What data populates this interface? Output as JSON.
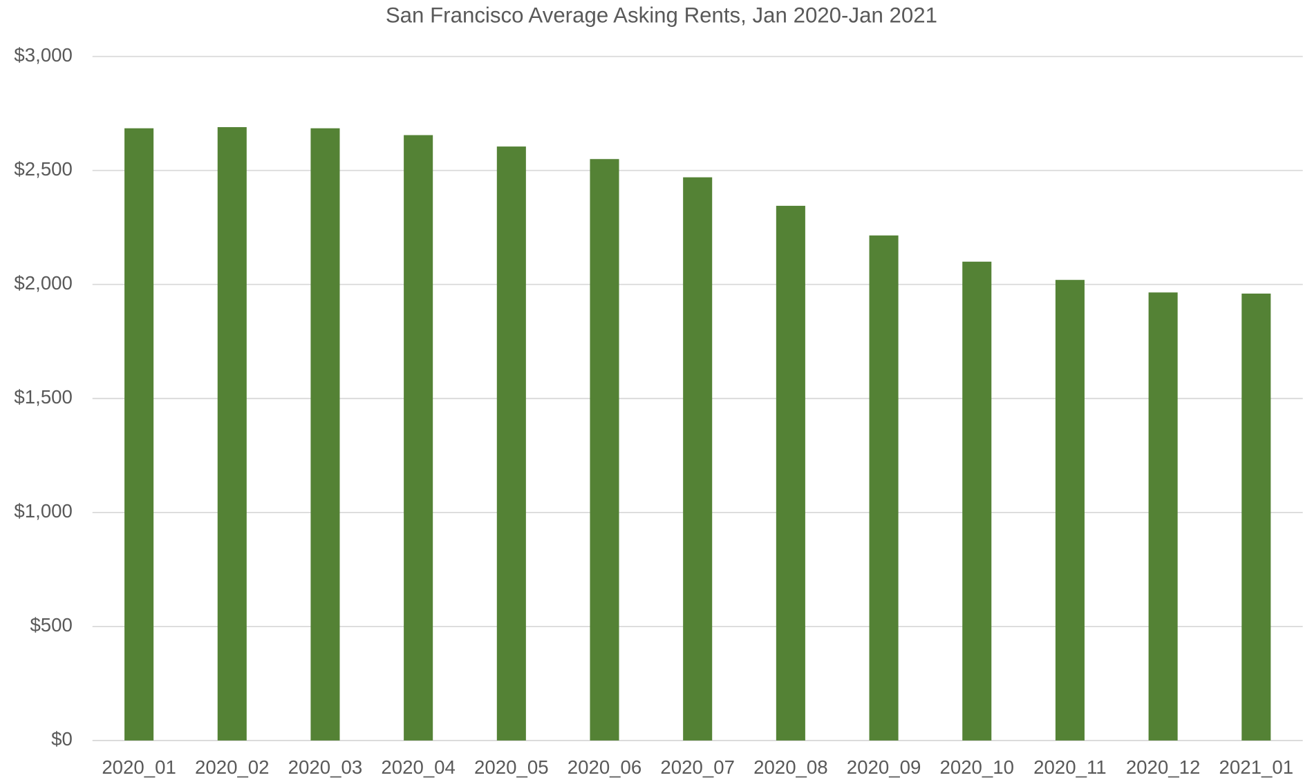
{
  "chart_data": {
    "type": "bar",
    "title": "San Francisco Average Asking Rents, Jan 2020-Jan 2021",
    "categories": [
      "2020_01",
      "2020_02",
      "2020_03",
      "2020_04",
      "2020_05",
      "2020_06",
      "2020_07",
      "2020_08",
      "2020_09",
      "2020_10",
      "2020_11",
      "2020_12",
      "2021_01"
    ],
    "values": [
      2685,
      2690,
      2685,
      2655,
      2605,
      2550,
      2470,
      2345,
      2215,
      2100,
      2020,
      1965,
      1960
    ],
    "color": "#548235",
    "ylim": [
      0,
      3000
    ],
    "yticks": [
      {
        "value": 0,
        "label": "$0"
      },
      {
        "value": 500,
        "label": "$500"
      },
      {
        "value": 1000,
        "label": "$1,000"
      },
      {
        "value": 1500,
        "label": "$1,500"
      },
      {
        "value": 2000,
        "label": "$2,000"
      },
      {
        "value": 2500,
        "label": "$2,500"
      },
      {
        "value": 3000,
        "label": "$3,000"
      }
    ],
    "grid": true
  }
}
